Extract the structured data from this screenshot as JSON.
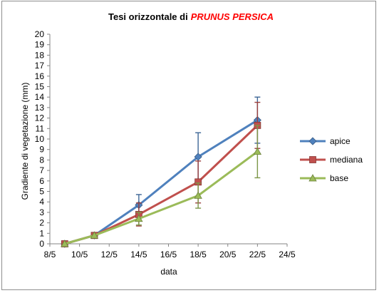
{
  "chart_data": {
    "type": "line",
    "title": "Tesi orizzontale di",
    "title_highlight": "PRUNUS PERSICA",
    "title_highlight_color": "#ff0000",
    "xlabel": "data",
    "ylabel": "Gradiente di vegetazione (mm)",
    "x_dates": [
      "2000-05-08",
      "2000-05-10",
      "2000-05-12",
      "2000-05-14",
      "2000-05-16",
      "2000-05-18",
      "2000-05-20",
      "2000-05-22",
      "2000-05-24"
    ],
    "x_tick_labels": [
      "8/5",
      "10/5",
      "12/5",
      "14/5",
      "16/5",
      "18/5",
      "20/5",
      "22/5",
      "24/5"
    ],
    "xlim": [
      "2000-05-08",
      "2000-05-24"
    ],
    "ylim": [
      0,
      20
    ],
    "y_ticks": [
      0,
      1,
      2,
      3,
      4,
      5,
      6,
      7,
      8,
      9,
      10,
      11,
      12,
      13,
      14,
      15,
      16,
      17,
      18,
      19,
      20
    ],
    "grid": false,
    "legend_position": "right",
    "series": [
      {
        "name": "apice",
        "color": "#4f81bd",
        "marker": "diamond",
        "points": [
          {
            "date": "2000-05-09",
            "y": 0.0
          },
          {
            "date": "2000-05-11",
            "y": 0.8
          },
          {
            "date": "2000-05-14",
            "y": 3.7,
            "err": 1.0
          },
          {
            "date": "2000-05-18",
            "y": 8.3,
            "err": 2.3
          },
          {
            "date": "2000-05-22",
            "y": 11.8,
            "err": 2.2
          }
        ]
      },
      {
        "name": "mediana",
        "color": "#c0504d",
        "marker": "square",
        "points": [
          {
            "date": "2000-05-09",
            "y": 0.0
          },
          {
            "date": "2000-05-11",
            "y": 0.8
          },
          {
            "date": "2000-05-14",
            "y": 2.8,
            "err": 1.1
          },
          {
            "date": "2000-05-18",
            "y": 5.9,
            "err": 2.0
          },
          {
            "date": "2000-05-22",
            "y": 11.3,
            "err": 2.2
          }
        ]
      },
      {
        "name": "base",
        "color": "#9bbb59",
        "marker": "triangle",
        "points": [
          {
            "date": "2000-05-09",
            "y": 0.0
          },
          {
            "date": "2000-05-11",
            "y": 0.8
          },
          {
            "date": "2000-05-14",
            "y": 2.4,
            "err": 0.6
          },
          {
            "date": "2000-05-18",
            "y": 4.6,
            "err": 1.2
          },
          {
            "date": "2000-05-22",
            "y": 8.8,
            "err": 2.5
          }
        ]
      }
    ]
  }
}
